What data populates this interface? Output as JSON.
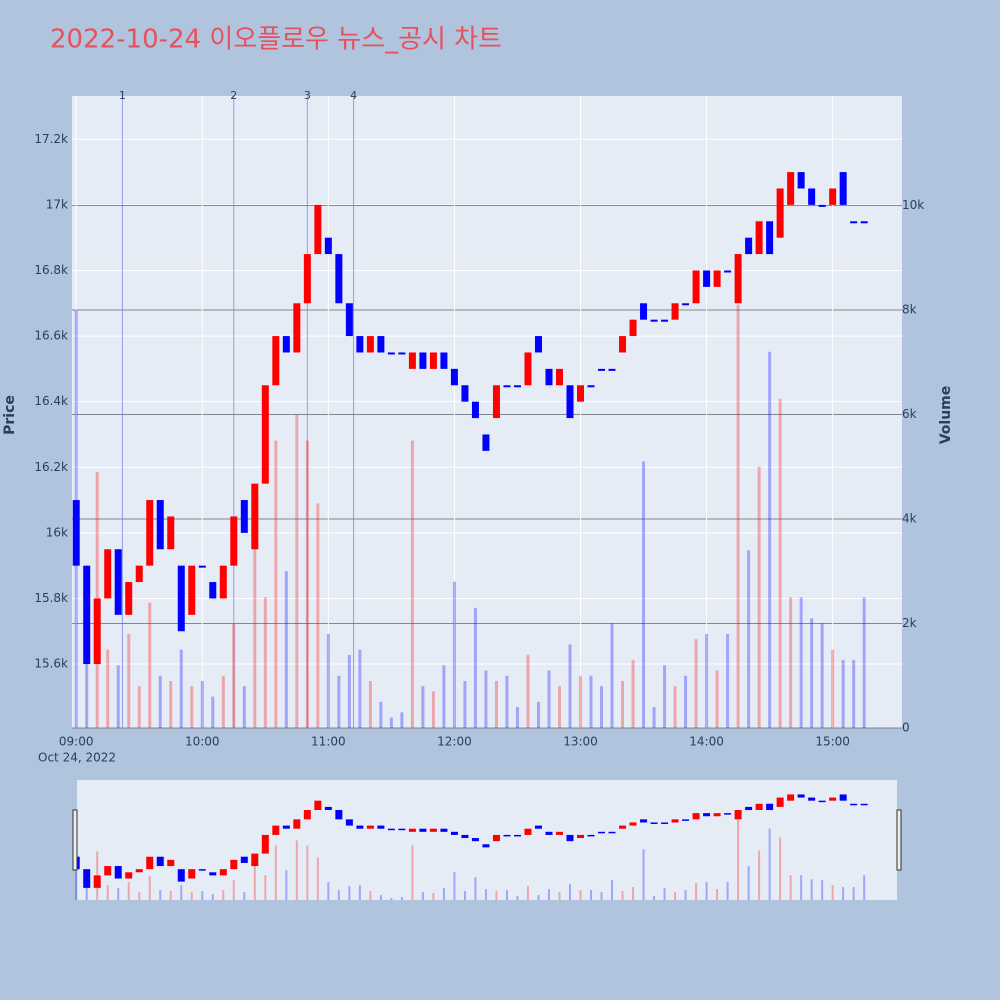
{
  "chart_data": {
    "type": "candlestick",
    "title": "2022-10-24 이오플로우 뉴스_공시 차트",
    "ylabel": "Price",
    "y2label": "Volume",
    "x_date_label": "Oct 24, 2022",
    "x": [
      "09:00",
      "09:05",
      "09:10",
      "09:15",
      "09:20",
      "09:25",
      "09:30",
      "09:35",
      "09:40",
      "09:45",
      "09:50",
      "09:55",
      "10:00",
      "10:05",
      "10:10",
      "10:15",
      "10:20",
      "10:25",
      "10:30",
      "10:35",
      "10:40",
      "10:45",
      "10:50",
      "10:55",
      "11:00",
      "11:05",
      "11:10",
      "11:15",
      "11:20",
      "11:25",
      "11:30",
      "11:35",
      "11:40",
      "11:45",
      "11:50",
      "11:55",
      "12:00",
      "12:05",
      "12:10",
      "12:15",
      "12:20",
      "12:25",
      "12:30",
      "12:35",
      "12:40",
      "12:45",
      "12:50",
      "12:55",
      "13:00",
      "13:05",
      "13:10",
      "13:15",
      "13:20",
      "13:25",
      "13:30",
      "13:35",
      "13:40",
      "13:45",
      "13:50",
      "13:55",
      "14:00",
      "14:05",
      "14:10",
      "14:15",
      "14:20",
      "14:25",
      "14:30",
      "14:35",
      "14:40",
      "14:45",
      "14:50",
      "14:55",
      "15:00",
      "15:05",
      "15:10",
      "15:15"
    ],
    "open": [
      16100,
      15900,
      15600,
      15800,
      15950,
      15750,
      15850,
      15900,
      16100,
      15950,
      15900,
      15750,
      15900,
      15850,
      15800,
      15900,
      16100,
      15950,
      16150,
      16450,
      16600,
      16550,
      16700,
      16850,
      16900,
      16850,
      16700,
      16600,
      16550,
      16600,
      16550,
      16550,
      16500,
      16550,
      16500,
      16550,
      16500,
      16450,
      16400,
      16300,
      16350,
      16450,
      16450,
      16450,
      16600,
      16500,
      16450,
      16450,
      16400,
      16450,
      16500,
      16500,
      16550,
      16600,
      16700,
      16650,
      16650,
      16650,
      16700,
      16700,
      16800,
      16750,
      16800,
      16700,
      16900,
      16850,
      16950,
      16900,
      17000,
      17100,
      17050,
      17000,
      17000,
      17100,
      16950,
      16950
    ],
    "close": [
      15900,
      15600,
      15800,
      15950,
      15750,
      15850,
      15900,
      16100,
      15950,
      16050,
      15700,
      15900,
      15900,
      15800,
      15900,
      16050,
      16000,
      16150,
      16450,
      16600,
      16550,
      16700,
      16850,
      17000,
      16850,
      16700,
      16600,
      16550,
      16600,
      16550,
      16550,
      16550,
      16550,
      16500,
      16550,
      16500,
      16450,
      16400,
      16350,
      16250,
      16450,
      16450,
      16450,
      16550,
      16550,
      16450,
      16500,
      16350,
      16450,
      16450,
      16500,
      16500,
      16600,
      16650,
      16650,
      16650,
      16650,
      16700,
      16700,
      16800,
      16750,
      16800,
      16800,
      16850,
      16850,
      16950,
      16850,
      17050,
      17100,
      17050,
      17000,
      17000,
      17050,
      17000,
      16950,
      16950
    ],
    "volume": [
      8000,
      3000,
      4900,
      1500,
      1200,
      1800,
      800,
      2400,
      1000,
      900,
      1500,
      800,
      900,
      600,
      1000,
      2000,
      800,
      4500,
      2500,
      5500,
      3000,
      6000,
      5500,
      4300,
      1800,
      1000,
      1400,
      1500,
      900,
      500,
      200,
      300,
      5500,
      800,
      700,
      1200,
      2800,
      900,
      2300,
      1100,
      900,
      1000,
      400,
      1400,
      500,
      1100,
      800,
      1600,
      1000,
      1000,
      800,
      2000,
      900,
      1300,
      5100,
      400,
      1200,
      800,
      1000,
      1700,
      1800,
      1100,
      1800,
      8100,
      3400,
      5000,
      7200,
      6300,
      2500,
      2500,
      2100,
      2000,
      1500,
      1300,
      1300,
      2500
    ],
    "colors": {
      "up": "#ff0000",
      "down": "#0000ff"
    },
    "xlim": [
      "08:58",
      "15:33"
    ],
    "xticks": [
      "09:00",
      "10:00",
      "11:00",
      "12:00",
      "13:00",
      "14:00",
      "15:00"
    ],
    "ylim": [
      15405,
      17332
    ],
    "yticks": [
      {
        "value": 15600,
        "label": "15.6k"
      },
      {
        "value": 15800,
        "label": "15.8k"
      },
      {
        "value": 16000,
        "label": "16k"
      },
      {
        "value": 16200,
        "label": "16.2k"
      },
      {
        "value": 16400,
        "label": "16.4k"
      },
      {
        "value": 16600,
        "label": "16.6k"
      },
      {
        "value": 16800,
        "label": "16.8k"
      },
      {
        "value": 17000,
        "label": "17k"
      },
      {
        "value": 17200,
        "label": "17.2k"
      }
    ],
    "y2lim": [
      0,
      12095
    ],
    "y2ticks": [
      0,
      {
        "value": 2000,
        "label": "2k"
      },
      {
        "value": 4000,
        "label": "4k"
      },
      {
        "value": 6000,
        "label": "6k"
      },
      {
        "value": 8000,
        "label": "8k"
      },
      {
        "value": 10000,
        "label": "10k"
      }
    ],
    "annotations": [
      {
        "x": "09:22",
        "label": "1"
      },
      {
        "x": "10:15",
        "label": "2"
      },
      {
        "x": "10:50",
        "label": "3"
      },
      {
        "x": "11:12",
        "label": "4"
      }
    ],
    "range_slider": true
  }
}
